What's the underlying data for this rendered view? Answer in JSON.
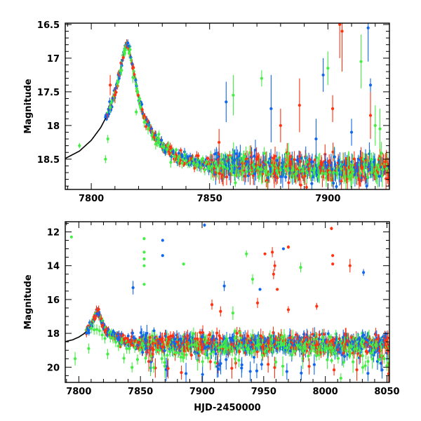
{
  "chart_data": [
    {
      "type": "scatter",
      "title": "",
      "xlabel": "",
      "ylabel": "Magnitude",
      "xlim": [
        7789,
        7926
      ],
      "ylim": [
        18.95,
        16.48
      ],
      "y_inverted": true,
      "x_ticks": [
        7800,
        7850,
        7900
      ],
      "y_ticks": [
        16.5,
        17,
        17.5,
        18,
        18.5
      ],
      "series_colors": {
        "green": "#44ee44",
        "blue": "#1166ee",
        "red": "#ff3311"
      },
      "model_curve": {
        "color": "#000000",
        "x": [
          7789,
          7795,
          7800,
          7804,
          7807,
          7810,
          7812,
          7814,
          7815,
          7816,
          7818,
          7820,
          7823,
          7826,
          7830,
          7835,
          7840,
          7848,
          7860,
          7880,
          7926
        ],
        "y": [
          18.49,
          18.38,
          18.22,
          18.03,
          17.83,
          17.52,
          17.22,
          16.88,
          16.76,
          16.84,
          17.22,
          17.58,
          17.93,
          18.12,
          18.29,
          18.42,
          18.5,
          18.57,
          18.61,
          18.63,
          18.64
        ]
      },
      "outliers": [
        {
          "series": "green",
          "x": 7795,
          "y": 18.3,
          "err": 0.04
        },
        {
          "series": "green",
          "x": 7806,
          "y": 18.5,
          "err": 0.06
        },
        {
          "series": "green",
          "x": 7807,
          "y": 18.2,
          "err": 0.06
        },
        {
          "series": "red",
          "x": 7808,
          "y": 17.4,
          "err": 0.15
        },
        {
          "series": "red",
          "x": 7810,
          "y": 17.55,
          "err": 0.12
        },
        {
          "series": "green",
          "x": 7819,
          "y": 17.8,
          "err": 0.05
        },
        {
          "series": "blue",
          "x": 7857,
          "y": 17.65,
          "err": 0.3
        },
        {
          "series": "green",
          "x": 7860,
          "y": 17.55,
          "err": 0.3
        },
        {
          "series": "red",
          "x": 7854,
          "y": 18.25,
          "err": 0.2
        },
        {
          "series": "green",
          "x": 7872,
          "y": 17.3,
          "err": 0.12
        },
        {
          "series": "blue",
          "x": 7876,
          "y": 17.75,
          "err": 0.5
        },
        {
          "series": "red",
          "x": 7880,
          "y": 18.0,
          "err": 0.25
        },
        {
          "series": "red",
          "x": 7888,
          "y": 17.7,
          "err": 0.4
        },
        {
          "series": "blue",
          "x": 7895,
          "y": 18.2,
          "err": 0.3
        },
        {
          "series": "blue",
          "x": 7898,
          "y": 17.25,
          "err": 0.25
        },
        {
          "series": "green",
          "x": 7900,
          "y": 17.15,
          "err": 0.25
        },
        {
          "series": "red",
          "x": 7902,
          "y": 17.75,
          "err": 0.2
        },
        {
          "series": "red",
          "x": 7905,
          "y": 16.5,
          "err": 0.5
        },
        {
          "series": "red",
          "x": 7906,
          "y": 16.6,
          "err": 0.6
        },
        {
          "series": "blue",
          "x": 7910,
          "y": 18.1,
          "err": 0.2
        },
        {
          "series": "green",
          "x": 7914,
          "y": 17.05,
          "err": 0.4
        },
        {
          "series": "blue",
          "x": 7917,
          "y": 16.55,
          "err": 0.5
        },
        {
          "series": "blue",
          "x": 7918,
          "y": 17.4,
          "err": 0.1
        },
        {
          "series": "green",
          "x": 7920,
          "y": 18.0,
          "err": 0.3
        },
        {
          "series": "red",
          "x": 7918,
          "y": 17.85,
          "err": 0.35
        },
        {
          "series": "green",
          "x": 7922,
          "y": 18.05,
          "err": 0.3
        }
      ]
    },
    {
      "type": "scatter",
      "title": "",
      "xlabel": "HJD-2450000",
      "ylabel": "Magnitude",
      "xlim": [
        7789,
        8052
      ],
      "ylim": [
        20.9,
        11.4
      ],
      "y_inverted": true,
      "x_ticks": [
        7800,
        7850,
        7900,
        7950,
        8000,
        8050
      ],
      "y_ticks": [
        12,
        14,
        16,
        18,
        20
      ],
      "series_colors": {
        "green": "#44ee44",
        "blue": "#1166ee",
        "red": "#ff3311"
      },
      "model_curve": {
        "color": "#000000",
        "x": [
          7789,
          7795,
          7800,
          7804,
          7807,
          7810,
          7812,
          7814,
          7815,
          7816,
          7818,
          7820,
          7823,
          7826,
          7830,
          7835,
          7840,
          7848,
          7860,
          7880,
          7950,
          8052
        ],
        "y": [
          18.49,
          18.38,
          18.22,
          18.03,
          17.83,
          17.52,
          17.22,
          16.88,
          16.76,
          16.84,
          17.22,
          17.58,
          17.93,
          18.12,
          18.29,
          18.42,
          18.5,
          18.57,
          18.61,
          18.63,
          18.64,
          18.64
        ]
      },
      "outliers": [
        {
          "series": "green",
          "x": 7794,
          "y": 12.3,
          "err": 0.05
        },
        {
          "series": "green",
          "x": 7797,
          "y": 19.5,
          "err": 0.4
        },
        {
          "series": "blue",
          "x": 7844,
          "y": 15.3,
          "err": 0.4
        },
        {
          "series": "green",
          "x": 7853,
          "y": 12.4,
          "err": 0.05
        },
        {
          "series": "green",
          "x": 7853,
          "y": 13.2,
          "err": 0.05
        },
        {
          "series": "green",
          "x": 7853,
          "y": 13.6,
          "err": 0.05
        },
        {
          "series": "green",
          "x": 7853,
          "y": 14.0,
          "err": 0.05
        },
        {
          "series": "green",
          "x": 7853,
          "y": 15.1,
          "err": 0.05
        },
        {
          "series": "blue",
          "x": 7868,
          "y": 12.5,
          "err": 0.05
        },
        {
          "series": "blue",
          "x": 7868,
          "y": 13.4,
          "err": 0.05
        },
        {
          "series": "green",
          "x": 7885,
          "y": 13.9,
          "err": 0.05
        },
        {
          "series": "blue",
          "x": 7902,
          "y": 11.6,
          "err": 0.1
        },
        {
          "series": "blue",
          "x": 7918,
          "y": 15.2,
          "err": 0.3
        },
        {
          "series": "red",
          "x": 7908,
          "y": 16.3,
          "err": 0.3
        },
        {
          "series": "red",
          "x": 7915,
          "y": 16.7,
          "err": 0.3
        },
        {
          "series": "green",
          "x": 7925,
          "y": 16.8,
          "err": 0.4
        },
        {
          "series": "green",
          "x": 7936,
          "y": 13.3,
          "err": 0.2
        },
        {
          "series": "green",
          "x": 7941,
          "y": 14.8,
          "err": 0.3
        },
        {
          "series": "red",
          "x": 7945,
          "y": 16.2,
          "err": 0.3
        },
        {
          "series": "red",
          "x": 7951,
          "y": 13.3,
          "err": 0.05
        },
        {
          "series": "blue",
          "x": 7947,
          "y": 15.4,
          "err": 0.05
        },
        {
          "series": "red",
          "x": 7957,
          "y": 13.2,
          "err": 0.3
        },
        {
          "series": "red",
          "x": 7959,
          "y": 14.0,
          "err": 0.3
        },
        {
          "series": "red",
          "x": 7958,
          "y": 14.5,
          "err": 0.3
        },
        {
          "series": "red",
          "x": 7961,
          "y": 15.4,
          "err": 0.05
        },
        {
          "series": "blue",
          "x": 7966,
          "y": 13.0,
          "err": 0.05
        },
        {
          "series": "red",
          "x": 7970,
          "y": 12.9,
          "err": 0.1
        },
        {
          "series": "red",
          "x": 7970,
          "y": 16.6,
          "err": 0.2
        },
        {
          "series": "green",
          "x": 7980,
          "y": 14.1,
          "err": 0.3
        },
        {
          "series": "red",
          "x": 7993,
          "y": 16.4,
          "err": 0.2
        },
        {
          "series": "red",
          "x": 8005,
          "y": 11.8,
          "err": 0.1
        },
        {
          "series": "red",
          "x": 8006,
          "y": 13.4,
          "err": 0.05
        },
        {
          "series": "red",
          "x": 8006,
          "y": 13.9,
          "err": 0.05
        },
        {
          "series": "red",
          "x": 8020,
          "y": 14.0,
          "err": 0.4
        },
        {
          "series": "blue",
          "x": 8031,
          "y": 14.4,
          "err": 0.2
        },
        {
          "series": "blue",
          "x": 8031,
          "y": 18.1,
          "err": 0.2
        }
      ]
    }
  ]
}
